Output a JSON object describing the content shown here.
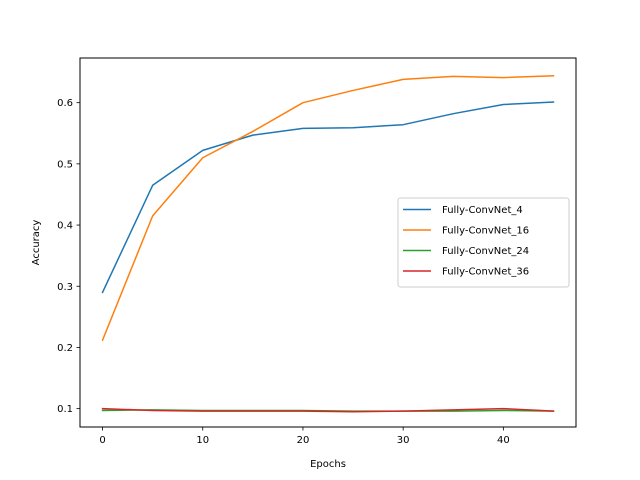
{
  "chart_data": {
    "type": "line",
    "title": "",
    "xlabel": "Epochs",
    "ylabel": "Accuracy",
    "xlim": [
      -2.25,
      47.25
    ],
    "ylim": [
      0.07,
      0.673
    ],
    "xticks": [
      0,
      10,
      20,
      30,
      40
    ],
    "xtick_labels": [
      "0",
      "10",
      "20",
      "30",
      "40"
    ],
    "yticks": [
      0.1,
      0.2,
      0.3,
      0.4,
      0.5,
      0.6
    ],
    "ytick_labels": [
      "0.1",
      "0.2",
      "0.3",
      "0.4",
      "0.5",
      "0.6"
    ],
    "grid": false,
    "legend_position": "center-right",
    "x": [
      0,
      5,
      10,
      15,
      20,
      25,
      30,
      35,
      40,
      45
    ],
    "series": [
      {
        "name": "Fully-ConvNet_4",
        "color": "#1f77b4",
        "values": [
          0.29,
          0.465,
          0.522,
          0.547,
          0.558,
          0.559,
          0.564,
          0.582,
          0.597,
          0.601
        ]
      },
      {
        "name": "Fully-ConvNet_16",
        "color": "#ff7f0e",
        "values": [
          0.212,
          0.415,
          0.51,
          0.553,
          0.6,
          0.62,
          0.638,
          0.643,
          0.641,
          0.644
        ]
      },
      {
        "name": "Fully-ConvNet_24",
        "color": "#2ca02c",
        "values": [
          0.097,
          0.098,
          0.097,
          0.097,
          0.097,
          0.096,
          0.096,
          0.096,
          0.097,
          0.096
        ]
      },
      {
        "name": "Fully-ConvNet_36",
        "color": "#d62728",
        "values": [
          0.1,
          0.097,
          0.096,
          0.096,
          0.096,
          0.095,
          0.096,
          0.098,
          0.1,
          0.096
        ]
      }
    ]
  }
}
